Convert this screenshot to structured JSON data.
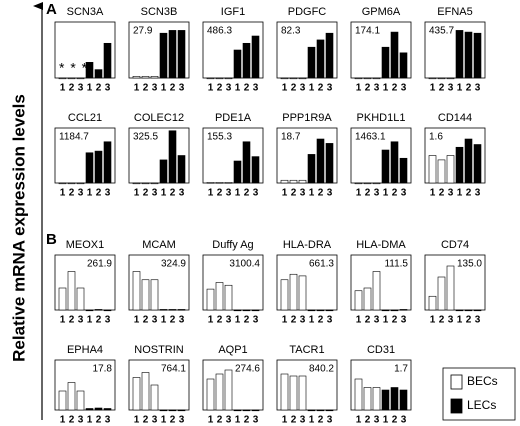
{
  "ylabel": "Relative mRNA expression levels",
  "panels": [
    "A",
    "B"
  ],
  "chart_data": [
    {
      "type": "bar",
      "title": "SCN3A",
      "annotation": "* * *",
      "annotation_corner": "bottom-left",
      "categories": [
        "1",
        "2",
        "3"
      ],
      "ylim": [
        0,
        100
      ],
      "series": [
        {
          "name": "BECs",
          "color": "#ffffff",
          "values": [
            0,
            0,
            0
          ]
        },
        {
          "name": "LECs",
          "color": "#000000",
          "values": [
            28,
            15,
            62
          ]
        }
      ]
    },
    {
      "type": "bar",
      "title": "SCN3B",
      "annotation": "27.9",
      "annotation_corner": "top-left",
      "categories": [
        "1",
        "2",
        "3"
      ],
      "ylim": [
        0,
        100
      ],
      "series": [
        {
          "name": "BECs",
          "color": "#ffffff",
          "values": [
            3,
            3,
            3
          ]
        },
        {
          "name": "LECs",
          "color": "#000000",
          "values": [
            80,
            85,
            85
          ]
        }
      ]
    },
    {
      "type": "bar",
      "title": "IGF1",
      "annotation": "486.3",
      "annotation_corner": "top-left",
      "categories": [
        "1",
        "2",
        "3"
      ],
      "ylim": [
        0,
        100
      ],
      "series": [
        {
          "name": "BECs",
          "color": "#ffffff",
          "values": [
            0,
            0,
            0
          ]
        },
        {
          "name": "LECs",
          "color": "#000000",
          "values": [
            50,
            62,
            75
          ]
        }
      ]
    },
    {
      "type": "bar",
      "title": "PDGFC",
      "annotation": "82.3",
      "annotation_corner": "top-left",
      "categories": [
        "1",
        "2",
        "3"
      ],
      "ylim": [
        0,
        100
      ],
      "series": [
        {
          "name": "BECs",
          "color": "#ffffff",
          "values": [
            0,
            0,
            0
          ]
        },
        {
          "name": "LECs",
          "color": "#000000",
          "values": [
            55,
            68,
            80
          ]
        }
      ]
    },
    {
      "type": "bar",
      "title": "GPM6A",
      "annotation": "174.1",
      "annotation_corner": "top-left",
      "categories": [
        "1",
        "2",
        "3"
      ],
      "ylim": [
        0,
        100
      ],
      "series": [
        {
          "name": "BECs",
          "color": "#ffffff",
          "values": [
            0,
            0,
            0
          ]
        },
        {
          "name": "LECs",
          "color": "#000000",
          "values": [
            55,
            82,
            45
          ]
        }
      ]
    },
    {
      "type": "bar",
      "title": "EFNA5",
      "annotation": "435.7",
      "annotation_corner": "top-left",
      "categories": [
        "1",
        "2",
        "3"
      ],
      "ylim": [
        0,
        100
      ],
      "series": [
        {
          "name": "BECs",
          "color": "#ffffff",
          "values": [
            0,
            0,
            0
          ]
        },
        {
          "name": "LECs",
          "color": "#000000",
          "values": [
            85,
            82,
            80
          ]
        }
      ]
    },
    {
      "type": "bar",
      "title": "CCL21",
      "annotation": "1184.7",
      "annotation_corner": "top-left",
      "categories": [
        "1",
        "2",
        "3"
      ],
      "ylim": [
        0,
        100
      ],
      "series": [
        {
          "name": "BECs",
          "color": "#ffffff",
          "values": [
            0,
            0,
            0
          ]
        },
        {
          "name": "LECs",
          "color": "#000000",
          "values": [
            55,
            58,
            75
          ]
        }
      ]
    },
    {
      "type": "bar",
      "title": "COLEC12",
      "annotation": "325.5",
      "annotation_corner": "top-left",
      "categories": [
        "1",
        "2",
        "3"
      ],
      "ylim": [
        0,
        100
      ],
      "series": [
        {
          "name": "BECs",
          "color": "#ffffff",
          "values": [
            0,
            0,
            0
          ]
        },
        {
          "name": "LECs",
          "color": "#000000",
          "values": [
            42,
            95,
            50
          ]
        }
      ]
    },
    {
      "type": "bar",
      "title": "PDE1A",
      "annotation": "155.3",
      "annotation_corner": "top-left",
      "categories": [
        "1",
        "2",
        "3"
      ],
      "ylim": [
        0,
        100
      ],
      "series": [
        {
          "name": "BECs",
          "color": "#ffffff",
          "values": [
            1,
            1,
            1
          ]
        },
        {
          "name": "LECs",
          "color": "#000000",
          "values": [
            40,
            75,
            48
          ]
        }
      ]
    },
    {
      "type": "bar",
      "title": "PPP1R9A",
      "annotation": "18.7",
      "annotation_corner": "top-left",
      "categories": [
        "1",
        "2",
        "3"
      ],
      "ylim": [
        0,
        100
      ],
      "series": [
        {
          "name": "BECs",
          "color": "#ffffff",
          "values": [
            5,
            5,
            5
          ]
        },
        {
          "name": "LECs",
          "color": "#000000",
          "values": [
            52,
            80,
            72
          ]
        }
      ]
    },
    {
      "type": "bar",
      "title": "PKHD1L1",
      "annotation": "1463.1",
      "annotation_corner": "top-left",
      "categories": [
        "1",
        "2",
        "3"
      ],
      "ylim": [
        0,
        100
      ],
      "series": [
        {
          "name": "BECs",
          "color": "#ffffff",
          "values": [
            0,
            0,
            0
          ]
        },
        {
          "name": "LECs",
          "color": "#000000",
          "values": [
            60,
            75,
            45
          ]
        }
      ]
    },
    {
      "type": "bar",
      "title": "CD144",
      "annotation": "1.6",
      "annotation_corner": "top-left",
      "categories": [
        "1",
        "2",
        "3"
      ],
      "ylim": [
        0,
        100
      ],
      "series": [
        {
          "name": "BECs",
          "color": "#ffffff",
          "values": [
            50,
            42,
            50
          ]
        },
        {
          "name": "LECs",
          "color": "#000000",
          "values": [
            65,
            80,
            70
          ]
        }
      ]
    },
    {
      "type": "bar",
      "title": "MEOX1",
      "annotation": "261.9",
      "annotation_corner": "top-right",
      "categories": [
        "1",
        "2",
        "3"
      ],
      "ylim": [
        0,
        100
      ],
      "series": [
        {
          "name": "BECs",
          "color": "#ffffff",
          "values": [
            40,
            70,
            40
          ]
        },
        {
          "name": "LECs",
          "color": "#000000",
          "values": [
            0,
            1,
            0
          ]
        }
      ]
    },
    {
      "type": "bar",
      "title": "MCAM",
      "annotation": "324.9",
      "annotation_corner": "top-right",
      "categories": [
        "1",
        "2",
        "3"
      ],
      "ylim": [
        0,
        100
      ],
      "series": [
        {
          "name": "BECs",
          "color": "#ffffff",
          "values": [
            70,
            55,
            55
          ]
        },
        {
          "name": "LECs",
          "color": "#000000",
          "values": [
            1,
            1,
            1
          ]
        }
      ]
    },
    {
      "type": "bar",
      "title": "Duffy Ag",
      "annotation": "3100.4",
      "annotation_corner": "top-right",
      "categories": [
        "1",
        "2",
        "3"
      ],
      "ylim": [
        0,
        100
      ],
      "series": [
        {
          "name": "BECs",
          "color": "#ffffff",
          "values": [
            38,
            50,
            45
          ]
        },
        {
          "name": "LECs",
          "color": "#000000",
          "values": [
            0,
            0,
            0
          ]
        }
      ]
    },
    {
      "type": "bar",
      "title": "HLA-DRA",
      "annotation": "661.3",
      "annotation_corner": "top-right",
      "categories": [
        "1",
        "2",
        "3"
      ],
      "ylim": [
        0,
        100
      ],
      "series": [
        {
          "name": "BECs",
          "color": "#ffffff",
          "values": [
            55,
            65,
            62
          ]
        },
        {
          "name": "LECs",
          "color": "#000000",
          "values": [
            0,
            0,
            0
          ]
        }
      ]
    },
    {
      "type": "bar",
      "title": "HLA-DMA",
      "annotation": "111.5",
      "annotation_corner": "top-right",
      "categories": [
        "1",
        "2",
        "3"
      ],
      "ylim": [
        0,
        100
      ],
      "series": [
        {
          "name": "BECs",
          "color": "#ffffff",
          "values": [
            35,
            40,
            70
          ]
        },
        {
          "name": "LECs",
          "color": "#000000",
          "values": [
            0,
            0,
            1
          ]
        }
      ]
    },
    {
      "type": "bar",
      "title": "CD74",
      "annotation": "135.0",
      "annotation_corner": "top-right",
      "categories": [
        "1",
        "2",
        "3"
      ],
      "ylim": [
        0,
        100
      ],
      "series": [
        {
          "name": "BECs",
          "color": "#ffffff",
          "values": [
            25,
            60,
            80
          ]
        },
        {
          "name": "LECs",
          "color": "#000000",
          "values": [
            0,
            0,
            0
          ]
        }
      ]
    },
    {
      "type": "bar",
      "title": "EPHA4",
      "annotation": "17.8",
      "annotation_corner": "top-right",
      "categories": [
        "1",
        "2",
        "3"
      ],
      "ylim": [
        0,
        100
      ],
      "series": [
        {
          "name": "BECs",
          "color": "#ffffff",
          "values": [
            38,
            55,
            38
          ]
        },
        {
          "name": "LECs",
          "color": "#000000",
          "values": [
            3,
            4,
            3
          ]
        }
      ]
    },
    {
      "type": "bar",
      "title": "NOSTRIN",
      "annotation": "764.1",
      "annotation_corner": "top-right",
      "categories": [
        "1",
        "2",
        "3"
      ],
      "ylim": [
        0,
        100
      ],
      "series": [
        {
          "name": "BECs",
          "color": "#ffffff",
          "values": [
            65,
            75,
            50
          ]
        },
        {
          "name": "LECs",
          "color": "#000000",
          "values": [
            0,
            0,
            0
          ]
        }
      ]
    },
    {
      "type": "bar",
      "title": "AQP1",
      "annotation": "274.6",
      "annotation_corner": "top-right",
      "categories": [
        "1",
        "2",
        "3"
      ],
      "ylim": [
        0,
        100
      ],
      "series": [
        {
          "name": "BECs",
          "color": "#ffffff",
          "values": [
            62,
            72,
            80
          ]
        },
        {
          "name": "LECs",
          "color": "#000000",
          "values": [
            0,
            0,
            0
          ]
        }
      ]
    },
    {
      "type": "bar",
      "title": "TACR1",
      "annotation": "840.2",
      "annotation_corner": "top-right",
      "categories": [
        "1",
        "2",
        "3"
      ],
      "ylim": [
        0,
        100
      ],
      "series": [
        {
          "name": "BECs",
          "color": "#ffffff",
          "values": [
            72,
            68,
            68
          ]
        },
        {
          "name": "LECs",
          "color": "#000000",
          "values": [
            0,
            0,
            0
          ]
        }
      ]
    },
    {
      "type": "bar",
      "title": "CD31",
      "annotation": "1.7",
      "annotation_corner": "top-right",
      "categories": [
        "1",
        "2",
        "3"
      ],
      "ylim": [
        0,
        100
      ],
      "series": [
        {
          "name": "BECs",
          "color": "#ffffff",
          "values": [
            62,
            45,
            45
          ]
        },
        {
          "name": "LECs",
          "color": "#000000",
          "values": [
            40,
            45,
            40
          ]
        }
      ]
    }
  ]
}
